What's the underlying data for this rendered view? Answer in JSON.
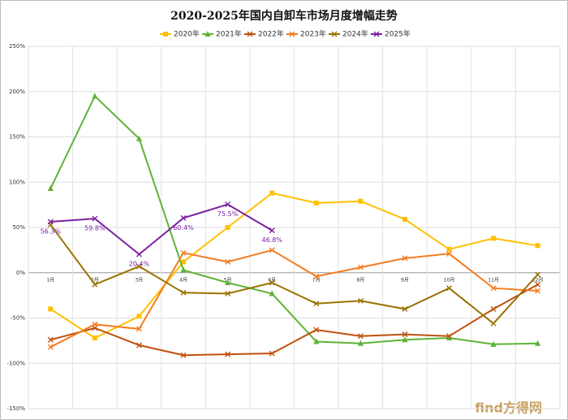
{
  "chart_data": {
    "type": "line",
    "title": "2020-2025年国内自卸车市场月度增幅走势",
    "categories": [
      "1月",
      "2月",
      "3月",
      "4月",
      "5月",
      "6月",
      "7月",
      "8月",
      "9月",
      "10月",
      "11月",
      "12月"
    ],
    "series": [
      {
        "name": "2020年",
        "color": "#ffc000",
        "marker": "square",
        "values": [
          -40,
          -72,
          -48,
          12,
          50,
          88,
          77,
          79,
          59,
          26,
          38,
          30
        ]
      },
      {
        "name": "2021年",
        "color": "#5fb336",
        "marker": "triangle",
        "values": [
          93,
          195,
          148,
          3,
          -11,
          -23,
          -76,
          -78,
          -74,
          -72,
          -79,
          -78
        ]
      },
      {
        "name": "2022年",
        "color": "#c0500e",
        "marker": "x",
        "values": [
          -74,
          -61,
          -80,
          -91,
          -90,
          -89,
          -63,
          -70,
          -68,
          -70,
          -40,
          -13
        ]
      },
      {
        "name": "2023年",
        "color": "#f47c20",
        "marker": "x",
        "values": [
          -82,
          -57,
          -62,
          22,
          12,
          25,
          -4,
          6,
          16,
          21,
          -17,
          -20
        ]
      },
      {
        "name": "2024年",
        "color": "#9a7200",
        "marker": "x",
        "values": [
          53,
          -13,
          7,
          -22,
          -23,
          -11,
          -34,
          -31,
          -40,
          -17,
          -56,
          -2
        ]
      },
      {
        "name": "2025年",
        "color": "#7b1fa2",
        "marker": "x",
        "values": [
          56.3,
          59.8,
          20.4,
          60.4,
          75.5,
          46.8,
          null,
          null,
          null,
          null,
          null,
          null
        ],
        "value_labels": [
          "56.3%",
          "59.8%",
          "20.4%",
          "60.4%",
          "75.5%",
          "46.8%",
          null,
          null,
          null,
          null,
          null,
          null
        ]
      }
    ],
    "ylim": [
      -150,
      250
    ],
    "yticks": [
      {
        "value": -150,
        "label": "-150%"
      },
      {
        "value": -100,
        "label": "-100%"
      },
      {
        "value": -50,
        "label": "-50%"
      },
      {
        "value": 0,
        "label": "0%"
      },
      {
        "value": 50,
        "label": "50%"
      },
      {
        "value": 100,
        "label": "100%"
      },
      {
        "value": 150,
        "label": "150%"
      },
      {
        "value": 200,
        "label": "200%"
      },
      {
        "value": 250,
        "label": "250%"
      }
    ],
    "grid": true,
    "legend": "top",
    "watermark": "find方得网"
  }
}
